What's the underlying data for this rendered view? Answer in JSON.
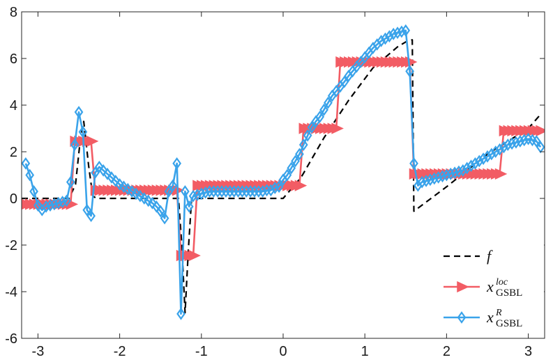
{
  "chart_data": {
    "type": "line",
    "title": "",
    "xlabel": "",
    "ylabel": "",
    "xlim": [
      -3.2,
      3.2
    ],
    "ylim": [
      -6,
      8
    ],
    "xticks": [
      -3,
      -2,
      -1,
      0,
      1,
      2,
      3
    ],
    "yticks": [
      -6,
      -4,
      -2,
      0,
      2,
      4,
      6,
      8
    ],
    "grid": false,
    "legend_position": "bottom-right",
    "series": [
      {
        "id": "f",
        "legend": {
          "base": "f",
          "sup": "",
          "sub": ""
        },
        "color": "#000000",
        "style": "dashed",
        "marker": "none",
        "points": [
          [
            -3.2,
            0
          ],
          [
            -2.62,
            0
          ],
          [
            -2.54,
            0.6
          ],
          [
            -2.48,
            2.6
          ],
          [
            -2.44,
            3.3
          ],
          [
            -2.38,
            1.4
          ],
          [
            -2.33,
            0.1
          ],
          [
            -2.28,
            0
          ],
          [
            -1.28,
            0
          ],
          [
            -1.24,
            -2.0
          ],
          [
            -1.2,
            -4.9
          ],
          [
            -1.16,
            -2.2
          ],
          [
            -1.12,
            0
          ],
          [
            0.0,
            0
          ],
          [
            0.22,
            0.9
          ],
          [
            0.5,
            2.6
          ],
          [
            0.8,
            4.2
          ],
          [
            1.1,
            5.6
          ],
          [
            1.4,
            6.5
          ],
          [
            1.52,
            6.75
          ],
          [
            1.58,
            6.8
          ],
          [
            1.6,
            -0.55
          ],
          [
            2.0,
            0.5
          ],
          [
            2.5,
            1.9
          ],
          [
            3.0,
            3.0
          ],
          [
            3.15,
            3.6
          ]
        ]
      },
      {
        "id": "x_loc",
        "legend": {
          "base": "x",
          "sup": "loc",
          "sub": "GSBL"
        },
        "color": "#f25c64",
        "style": "solid",
        "marker": "triangle-right",
        "points": [
          [
            -3.15,
            -0.25
          ],
          [
            -3.1,
            -0.25
          ],
          [
            -3.05,
            -0.25
          ],
          [
            -3.0,
            -0.25
          ],
          [
            -2.95,
            -0.25
          ],
          [
            -2.9,
            -0.25
          ],
          [
            -2.85,
            -0.25
          ],
          [
            -2.8,
            -0.25
          ],
          [
            -2.75,
            -0.25
          ],
          [
            -2.7,
            -0.25
          ],
          [
            -2.65,
            -0.25
          ],
          [
            -2.6,
            -0.25
          ],
          [
            -2.55,
            2.45
          ],
          [
            -2.5,
            2.45
          ],
          [
            -2.45,
            2.45
          ],
          [
            -2.4,
            2.45
          ],
          [
            -2.35,
            2.45
          ],
          [
            -2.3,
            0.35
          ],
          [
            -2.25,
            0.35
          ],
          [
            -2.2,
            0.35
          ],
          [
            -2.15,
            0.35
          ],
          [
            -2.1,
            0.35
          ],
          [
            -2.05,
            0.35
          ],
          [
            -2.0,
            0.35
          ],
          [
            -1.95,
            0.35
          ],
          [
            -1.9,
            0.35
          ],
          [
            -1.85,
            0.35
          ],
          [
            -1.8,
            0.35
          ],
          [
            -1.75,
            0.35
          ],
          [
            -1.7,
            0.35
          ],
          [
            -1.65,
            0.35
          ],
          [
            -1.6,
            0.35
          ],
          [
            -1.55,
            0.35
          ],
          [
            -1.5,
            0.35
          ],
          [
            -1.45,
            0.35
          ],
          [
            -1.4,
            0.35
          ],
          [
            -1.35,
            0.35
          ],
          [
            -1.3,
            0.35
          ],
          [
            -1.25,
            -2.45
          ],
          [
            -1.2,
            -2.45
          ],
          [
            -1.15,
            -2.45
          ],
          [
            -1.1,
            -2.45
          ],
          [
            -1.05,
            0.55
          ],
          [
            -1.0,
            0.55
          ],
          [
            -0.95,
            0.55
          ],
          [
            -0.9,
            0.55
          ],
          [
            -0.85,
            0.55
          ],
          [
            -0.8,
            0.55
          ],
          [
            -0.75,
            0.55
          ],
          [
            -0.7,
            0.55
          ],
          [
            -0.65,
            0.55
          ],
          [
            -0.6,
            0.55
          ],
          [
            -0.55,
            0.55
          ],
          [
            -0.5,
            0.55
          ],
          [
            -0.45,
            0.55
          ],
          [
            -0.4,
            0.55
          ],
          [
            -0.35,
            0.55
          ],
          [
            -0.3,
            0.55
          ],
          [
            -0.25,
            0.55
          ],
          [
            -0.2,
            0.55
          ],
          [
            -0.15,
            0.55
          ],
          [
            -0.1,
            0.55
          ],
          [
            -0.05,
            0.55
          ],
          [
            0.0,
            0.55
          ],
          [
            0.05,
            0.55
          ],
          [
            0.1,
            0.55
          ],
          [
            0.15,
            0.55
          ],
          [
            0.2,
            0.55
          ],
          [
            0.25,
            3.0
          ],
          [
            0.3,
            3.0
          ],
          [
            0.35,
            3.0
          ],
          [
            0.4,
            3.0
          ],
          [
            0.45,
            3.0
          ],
          [
            0.5,
            3.0
          ],
          [
            0.55,
            3.0
          ],
          [
            0.6,
            3.0
          ],
          [
            0.65,
            3.0
          ],
          [
            0.7,
            5.85
          ],
          [
            0.75,
            5.85
          ],
          [
            0.8,
            5.85
          ],
          [
            0.85,
            5.85
          ],
          [
            0.9,
            5.85
          ],
          [
            0.95,
            5.85
          ],
          [
            1.0,
            5.85
          ],
          [
            1.05,
            5.85
          ],
          [
            1.1,
            5.85
          ],
          [
            1.15,
            5.85
          ],
          [
            1.2,
            5.85
          ],
          [
            1.25,
            5.85
          ],
          [
            1.3,
            5.85
          ],
          [
            1.35,
            5.85
          ],
          [
            1.4,
            5.85
          ],
          [
            1.45,
            5.85
          ],
          [
            1.5,
            5.85
          ],
          [
            1.55,
            5.85
          ],
          [
            1.6,
            1.05
          ],
          [
            1.65,
            1.05
          ],
          [
            1.7,
            1.05
          ],
          [
            1.75,
            1.05
          ],
          [
            1.8,
            1.05
          ],
          [
            1.85,
            1.05
          ],
          [
            1.9,
            1.05
          ],
          [
            1.95,
            1.05
          ],
          [
            2.0,
            1.05
          ],
          [
            2.05,
            1.05
          ],
          [
            2.1,
            1.05
          ],
          [
            2.15,
            1.05
          ],
          [
            2.2,
            1.05
          ],
          [
            2.25,
            1.05
          ],
          [
            2.3,
            1.05
          ],
          [
            2.35,
            1.05
          ],
          [
            2.4,
            1.05
          ],
          [
            2.45,
            1.05
          ],
          [
            2.5,
            1.05
          ],
          [
            2.55,
            1.05
          ],
          [
            2.6,
            1.05
          ],
          [
            2.65,
            1.05
          ],
          [
            2.7,
            2.9
          ],
          [
            2.75,
            2.9
          ],
          [
            2.8,
            2.9
          ],
          [
            2.85,
            2.9
          ],
          [
            2.9,
            2.9
          ],
          [
            2.95,
            2.9
          ],
          [
            3.0,
            2.9
          ],
          [
            3.05,
            2.9
          ],
          [
            3.1,
            2.9
          ],
          [
            3.15,
            2.9
          ]
        ]
      },
      {
        "id": "x_R",
        "legend": {
          "base": "x",
          "sup": "R",
          "sub": "GSBL"
        },
        "color": "#3aa3ea",
        "style": "solid",
        "marker": "diamond",
        "points": [
          [
            -3.15,
            1.5
          ],
          [
            -3.1,
            1.0
          ],
          [
            -3.05,
            0.3
          ],
          [
            -3.0,
            -0.3
          ],
          [
            -2.95,
            -0.5
          ],
          [
            -2.9,
            -0.35
          ],
          [
            -2.85,
            -0.3
          ],
          [
            -2.8,
            -0.25
          ],
          [
            -2.75,
            -0.2
          ],
          [
            -2.7,
            -0.15
          ],
          [
            -2.65,
            -0.1
          ],
          [
            -2.6,
            0.7
          ],
          [
            -2.55,
            2.3
          ],
          [
            -2.5,
            3.7
          ],
          [
            -2.45,
            2.85
          ],
          [
            -2.4,
            -0.5
          ],
          [
            -2.35,
            -0.75
          ],
          [
            -2.3,
            1.1
          ],
          [
            -2.25,
            1.35
          ],
          [
            -2.2,
            1.2
          ],
          [
            -2.15,
            1.05
          ],
          [
            -2.1,
            0.9
          ],
          [
            -2.05,
            0.75
          ],
          [
            -2.0,
            0.6
          ],
          [
            -1.95,
            0.5
          ],
          [
            -1.9,
            0.4
          ],
          [
            -1.85,
            0.3
          ],
          [
            -1.8,
            0.2
          ],
          [
            -1.75,
            0.1
          ],
          [
            -1.7,
            0.0
          ],
          [
            -1.65,
            -0.1
          ],
          [
            -1.6,
            -0.2
          ],
          [
            -1.55,
            -0.35
          ],
          [
            -1.5,
            -0.55
          ],
          [
            -1.45,
            -0.85
          ],
          [
            -1.4,
            0.3
          ],
          [
            -1.35,
            0.55
          ],
          [
            -1.3,
            1.5
          ],
          [
            -1.25,
            -4.95
          ],
          [
            -1.2,
            0.3
          ],
          [
            -1.15,
            -0.35
          ],
          [
            -1.1,
            0.1
          ],
          [
            -1.05,
            0.15
          ],
          [
            -1.0,
            0.2
          ],
          [
            -0.95,
            0.25
          ],
          [
            -0.9,
            0.3
          ],
          [
            -0.85,
            0.3
          ],
          [
            -0.8,
            0.3
          ],
          [
            -0.75,
            0.3
          ],
          [
            -0.7,
            0.3
          ],
          [
            -0.65,
            0.3
          ],
          [
            -0.6,
            0.3
          ],
          [
            -0.55,
            0.3
          ],
          [
            -0.5,
            0.3
          ],
          [
            -0.45,
            0.3
          ],
          [
            -0.4,
            0.3
          ],
          [
            -0.35,
            0.3
          ],
          [
            -0.3,
            0.3
          ],
          [
            -0.25,
            0.3
          ],
          [
            -0.2,
            0.35
          ],
          [
            -0.15,
            0.35
          ],
          [
            -0.1,
            0.45
          ],
          [
            -0.05,
            0.5
          ],
          [
            0.0,
            0.8
          ],
          [
            0.05,
            1.0
          ],
          [
            0.1,
            1.3
          ],
          [
            0.15,
            1.6
          ],
          [
            0.2,
            1.9
          ],
          [
            0.25,
            2.3
          ],
          [
            0.3,
            2.7
          ],
          [
            0.35,
            3.05
          ],
          [
            0.4,
            3.3
          ],
          [
            0.45,
            3.5
          ],
          [
            0.5,
            3.8
          ],
          [
            0.55,
            4.1
          ],
          [
            0.6,
            4.4
          ],
          [
            0.65,
            4.6
          ],
          [
            0.7,
            4.8
          ],
          [
            0.75,
            5.0
          ],
          [
            0.8,
            5.25
          ],
          [
            0.85,
            5.45
          ],
          [
            0.9,
            5.65
          ],
          [
            0.95,
            5.85
          ],
          [
            1.0,
            6.05
          ],
          [
            1.05,
            6.25
          ],
          [
            1.1,
            6.45
          ],
          [
            1.15,
            6.6
          ],
          [
            1.2,
            6.75
          ],
          [
            1.25,
            6.85
          ],
          [
            1.3,
            6.95
          ],
          [
            1.35,
            7.05
          ],
          [
            1.4,
            7.1
          ],
          [
            1.45,
            7.15
          ],
          [
            1.5,
            7.2
          ],
          [
            1.55,
            5.45
          ],
          [
            1.6,
            1.5
          ],
          [
            1.65,
            0.55
          ],
          [
            1.7,
            0.7
          ],
          [
            1.75,
            0.75
          ],
          [
            1.8,
            0.8
          ],
          [
            1.85,
            0.85
          ],
          [
            1.9,
            0.9
          ],
          [
            1.95,
            0.95
          ],
          [
            2.0,
            1.0
          ],
          [
            2.05,
            1.05
          ],
          [
            2.1,
            1.1
          ],
          [
            2.15,
            1.15
          ],
          [
            2.2,
            1.2
          ],
          [
            2.25,
            1.3
          ],
          [
            2.3,
            1.4
          ],
          [
            2.35,
            1.5
          ],
          [
            2.4,
            1.6
          ],
          [
            2.45,
            1.7
          ],
          [
            2.5,
            1.8
          ],
          [
            2.55,
            1.9
          ],
          [
            2.6,
            2.0
          ],
          [
            2.65,
            2.1
          ],
          [
            2.7,
            2.2
          ],
          [
            2.75,
            2.3
          ],
          [
            2.8,
            2.35
          ],
          [
            2.85,
            2.4
          ],
          [
            2.9,
            2.45
          ],
          [
            2.95,
            2.5
          ],
          [
            3.0,
            2.55
          ],
          [
            3.05,
            2.5
          ],
          [
            3.1,
            2.45
          ],
          [
            3.15,
            2.2
          ]
        ]
      }
    ]
  }
}
